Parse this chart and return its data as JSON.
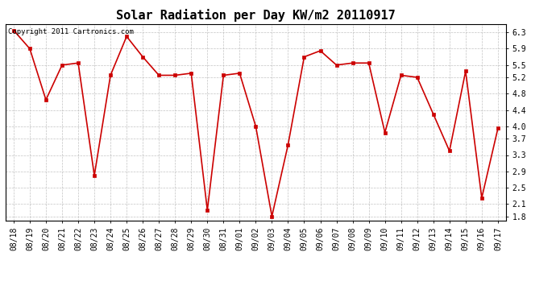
{
  "title": "Solar Radiation per Day KW/m2 20110917",
  "copyright_text": "Copyright 2011 Cartronics.com",
  "labels": [
    "08/18",
    "08/19",
    "08/20",
    "08/21",
    "08/22",
    "08/23",
    "08/24",
    "08/25",
    "08/26",
    "08/27",
    "08/28",
    "08/29",
    "08/30",
    "08/31",
    "09/01",
    "09/02",
    "09/03",
    "09/04",
    "09/05",
    "09/06",
    "09/07",
    "09/08",
    "09/09",
    "09/10",
    "09/11",
    "09/12",
    "09/13",
    "09/14",
    "09/15",
    "09/16",
    "09/17"
  ],
  "values": [
    6.35,
    5.9,
    4.65,
    5.5,
    5.55,
    2.8,
    5.25,
    6.2,
    5.7,
    5.25,
    5.25,
    5.3,
    1.95,
    5.25,
    5.3,
    4.0,
    1.8,
    3.55,
    5.7,
    5.85,
    5.5,
    5.55,
    5.55,
    3.85,
    5.25,
    5.2,
    4.3,
    3.4,
    5.35,
    2.25,
    3.95
  ],
  "line_color": "#cc0000",
  "marker": "s",
  "marker_size": 3,
  "bg_color": "#ffffff",
  "grid_color": "#aaaaaa",
  "ylim": [
    1.7,
    6.5
  ],
  "yticks": [
    1.8,
    2.1,
    2.5,
    2.9,
    3.3,
    3.7,
    4.0,
    4.4,
    4.8,
    5.2,
    5.5,
    5.9,
    6.3
  ],
  "ytick_labels": [
    "1.8",
    "2.1",
    "2.5",
    "2.9",
    "3.3",
    "3.7",
    "4.0",
    "4.4",
    "4.8",
    "5.2",
    "5.5",
    "5.9",
    "6.3"
  ],
  "title_fontsize": 11,
  "tick_fontsize": 7,
  "copyright_fontsize": 6.5
}
